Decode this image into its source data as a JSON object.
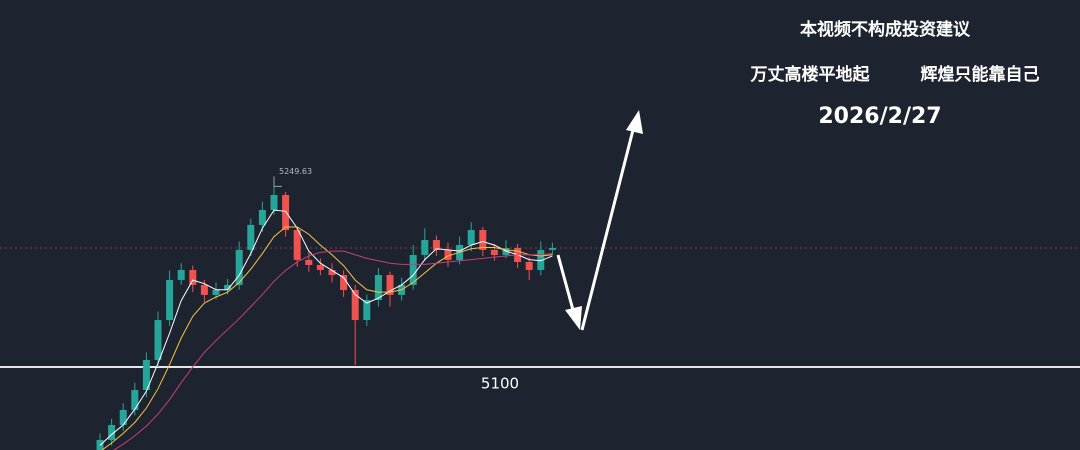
{
  "chart_data": {
    "type": "candlestick",
    "title": "本视频不构成投资建议",
    "subtitle_left": "万丈高楼平地起",
    "subtitle_right": "辉煌只能靠自己",
    "date": "2026/2/27",
    "ylim": [
      5031.2,
      5404.1
    ],
    "level": 5100,
    "up_color": "#26a69a",
    "down_color": "#ef5350",
    "open": [
      5030.0,
      5039.5,
      5051.9,
      5064.4,
      5080.9,
      5105.8,
      5138.9,
      5172.1,
      5180.4,
      5168.0,
      5159.7,
      5163.8,
      5168.0,
      5197.0,
      5217.7,
      5230.1,
      5242.5,
      5213.5,
      5188.7,
      5184.5,
      5180.4,
      5176.2,
      5163.8,
      5138.9,
      5155.5,
      5176.2,
      5159.7,
      5168.0,
      5192.8,
      5205.2,
      5197.0,
      5188.7,
      5201.1,
      5213.5,
      5197.0,
      5192.8,
      5198.6,
      5187.0,
      5180.4,
      5197.0
    ],
    "high": [
      5045,
      5057,
      5070,
      5087,
      5112,
      5146,
      5180,
      5186,
      5184,
      5172,
      5170,
      5173,
      5204,
      5223,
      5237,
      5249.63,
      5245,
      5216,
      5195,
      5190,
      5186,
      5180,
      5168,
      5160,
      5182,
      5179,
      5174,
      5201,
      5215,
      5209,
      5203,
      5208,
      5220,
      5216,
      5202,
      5205,
      5202,
      5191,
      5204,
      5203
    ],
    "low": [
      5024,
      5035,
      5047,
      5060,
      5075,
      5100,
      5134,
      5168,
      5162,
      5154,
      5156,
      5160,
      5164,
      5192,
      5212,
      5226,
      5208,
      5183,
      5179,
      5176,
      5170,
      5158,
      5101.5,
      5134,
      5150,
      5150,
      5155,
      5164,
      5188,
      5192,
      5183,
      5185,
      5196,
      5192,
      5188,
      5190,
      5182,
      5172,
      5176,
      5193
    ],
    "close": [
      5039.5,
      5051.9,
      5064.4,
      5080.9,
      5105.8,
      5138.9,
      5172.1,
      5180.4,
      5168.0,
      5159.7,
      5163.8,
      5168.0,
      5197.0,
      5217.7,
      5230.1,
      5242.5,
      5213.5,
      5188.7,
      5184.5,
      5180.4,
      5176.2,
      5163.8,
      5138.9,
      5155.5,
      5176.2,
      5159.7,
      5168.0,
      5192.8,
      5205.2,
      5197.0,
      5188.7,
      5201.1,
      5213.5,
      5197.0,
      5192.8,
      5198.6,
      5187.0,
      5180.4,
      5197.0,
      5198.6
    ],
    "series": [
      {
        "color": "#ffffff",
        "values": [
          5035,
          5044,
          5052,
          5065,
          5080,
          5103,
          5128,
          5155,
          5172,
          5169,
          5164,
          5164,
          5176,
          5194,
          5215,
          5230,
          5229,
          5215,
          5196,
          5186,
          5180,
          5174,
          5160,
          5153,
          5157,
          5163,
          5168,
          5176,
          5189,
          5198,
          5197,
          5196,
          5201,
          5204,
          5201,
          5196,
          5193,
          5189,
          5188,
          5192
        ]
      },
      {
        "color": "#f5c542",
        "values": [
          5030,
          5037,
          5045,
          5054,
          5066,
          5082,
          5102,
          5124,
          5142,
          5153,
          5158,
          5162,
          5170,
          5181,
          5194,
          5208,
          5216,
          5216,
          5210,
          5201,
          5193,
          5184,
          5172,
          5164,
          5162,
          5162,
          5164,
          5170,
          5178,
          5186,
          5192,
          5195,
          5198,
          5199,
          5199,
          5197,
          5196,
          5193,
          5192,
          5193
        ]
      },
      {
        "color": "#c2407a",
        "values": [
          5025,
          5030,
          5036,
          5043,
          5051,
          5061,
          5073,
          5087,
          5100,
          5112,
          5122,
          5131,
          5140,
          5150,
          5160,
          5171,
          5180,
          5187,
          5192,
          5195,
          5196,
          5196,
          5193,
          5190,
          5188,
          5186,
          5185,
          5185,
          5185,
          5186,
          5187,
          5188,
          5189,
          5190,
          5191,
          5192,
          5193,
          5193,
          5193,
          5194
        ]
      }
    ]
  }
}
